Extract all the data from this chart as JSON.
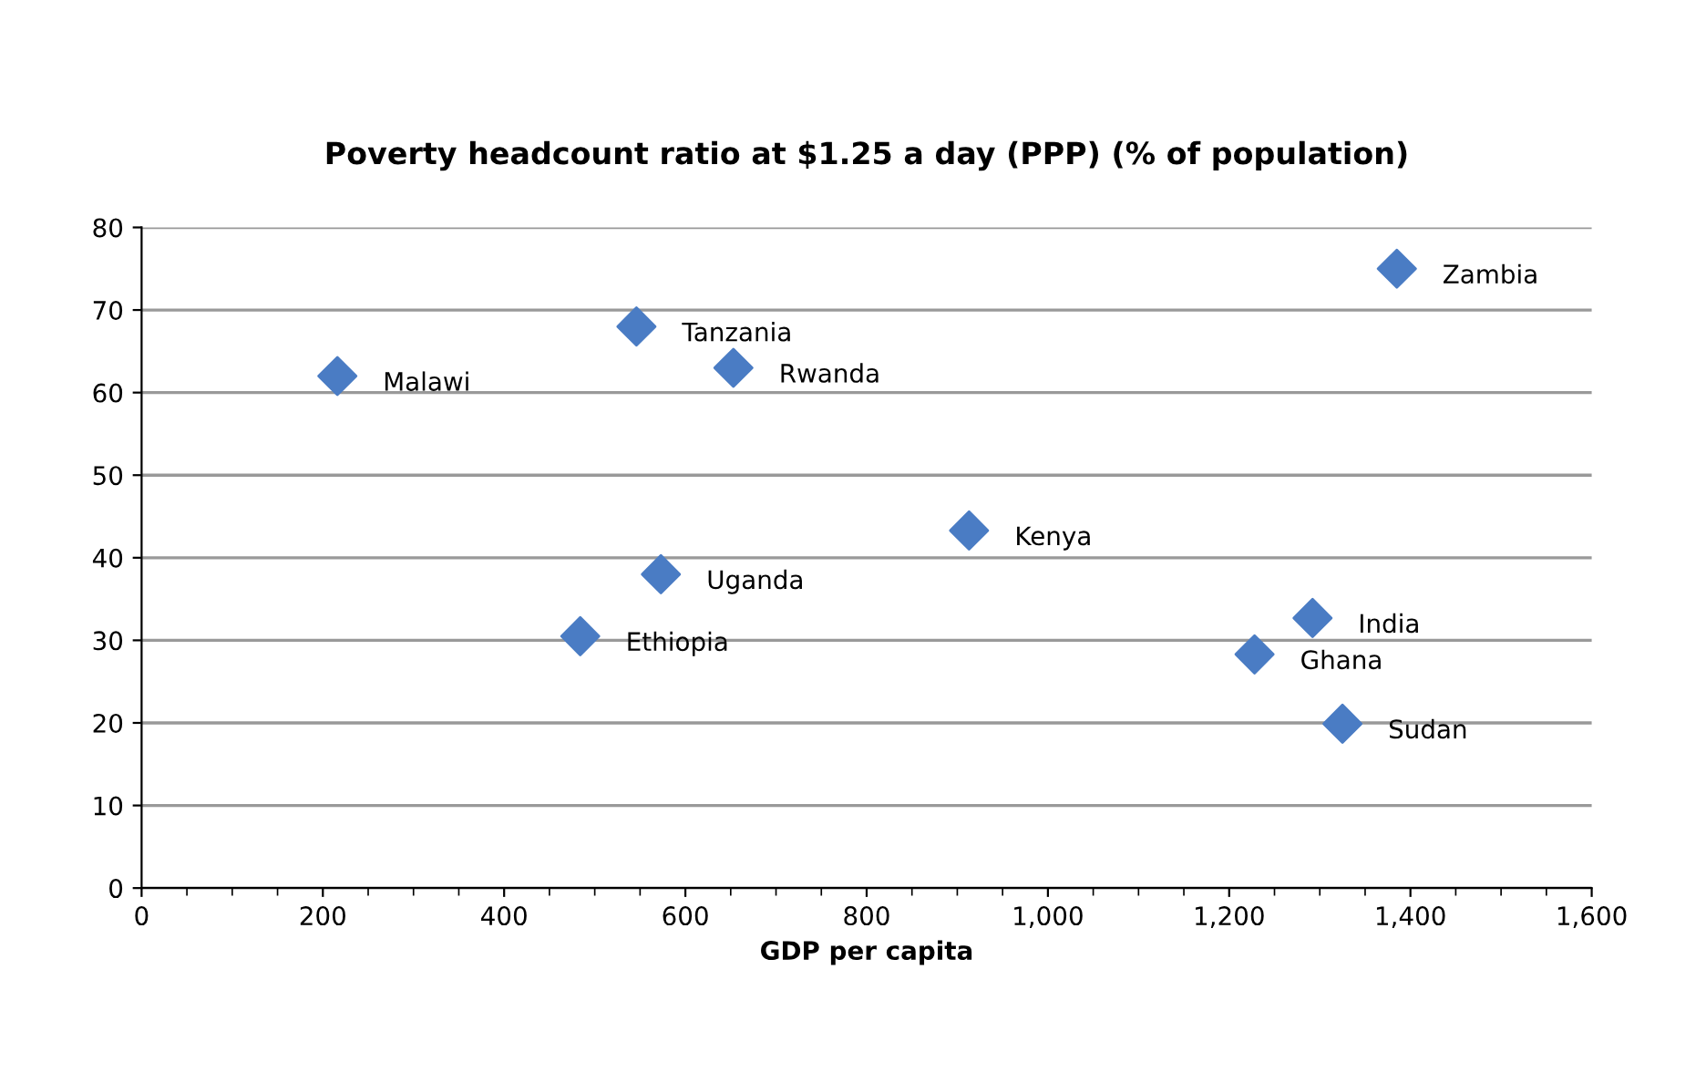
{
  "chart_data": {
    "type": "scatter",
    "title": "Poverty headcount ratio at $1.25 a day (PPP) (% of population)",
    "xlabel": "GDP per capita",
    "series": [
      {
        "color": "#4a7cc4",
        "x": [
          216,
          546,
          653,
          573,
          484,
          913,
          1292,
          1228,
          1325,
          1385
        ],
        "values": [
          62,
          68,
          63,
          38,
          30.5,
          43.3,
          32.7,
          28.3,
          19.9,
          75
        ]
      }
    ],
    "annotations": [
      {
        "text": "Malawi",
        "x": 216,
        "y": 62
      },
      {
        "text": "Tanzania",
        "x": 546,
        "y": 68
      },
      {
        "text": "Rwanda",
        "x": 653,
        "y": 63
      },
      {
        "text": "Uganda",
        "x": 573,
        "y": 38
      },
      {
        "text": "Ethiopia",
        "x": 484,
        "y": 30.5
      },
      {
        "text": "Kenya",
        "x": 913,
        "y": 43.3
      },
      {
        "text": "India",
        "x": 1292,
        "y": 32.7
      },
      {
        "text": "Ghana",
        "x": 1228,
        "y": 28.3
      },
      {
        "text": "Sudan",
        "x": 1325,
        "y": 19.9
      },
      {
        "text": "Zambia",
        "x": 1385,
        "y": 75
      }
    ],
    "xlim": [
      0,
      1600
    ],
    "xticks": [
      0,
      200,
      400,
      600,
      800,
      {
        "value": 1000,
        "label": "1,000"
      },
      {
        "value": 1200,
        "label": "1,200"
      },
      {
        "value": 1400,
        "label": "1,400"
      },
      {
        "value": 1600,
        "label": "1,600"
      }
    ],
    "ylim": [
      0,
      80
    ],
    "yticks": [
      0,
      10,
      20,
      30,
      40,
      50,
      60,
      70,
      80
    ],
    "grid": "y",
    "marker": "diamond"
  }
}
